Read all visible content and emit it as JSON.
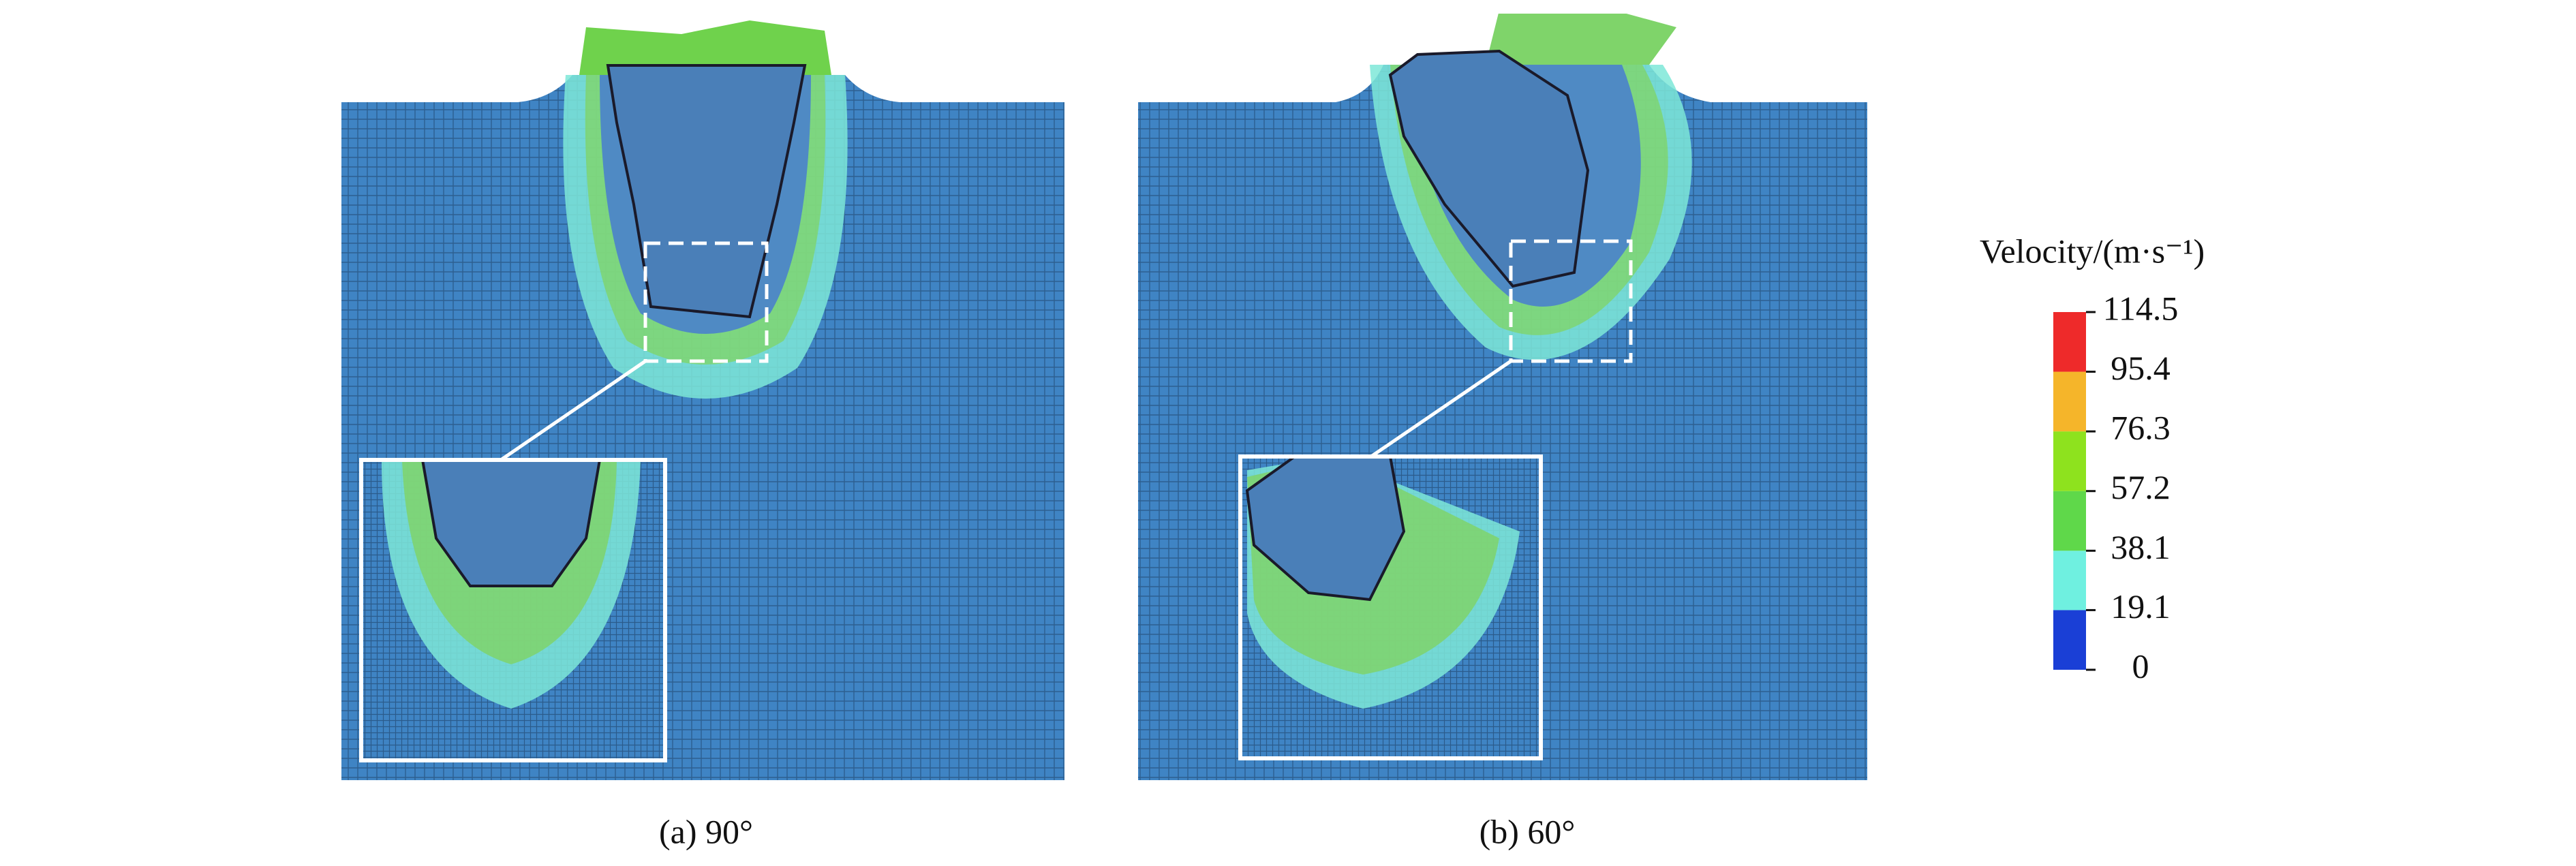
{
  "panels": [
    {
      "caption": "(a) 90°"
    },
    {
      "caption": "(b) 60°"
    }
  ],
  "colorbar": {
    "title": "Velocity/(m·s⁻¹)",
    "ticks": [
      0,
      19.1,
      38.1,
      57.2,
      76.3,
      95.4,
      114.5
    ],
    "colors": [
      "#1a3fd6",
      "#6ff0e0",
      "#5fd84a",
      "#8ee21e",
      "#f5b52a",
      "#ee2a2a"
    ]
  }
}
